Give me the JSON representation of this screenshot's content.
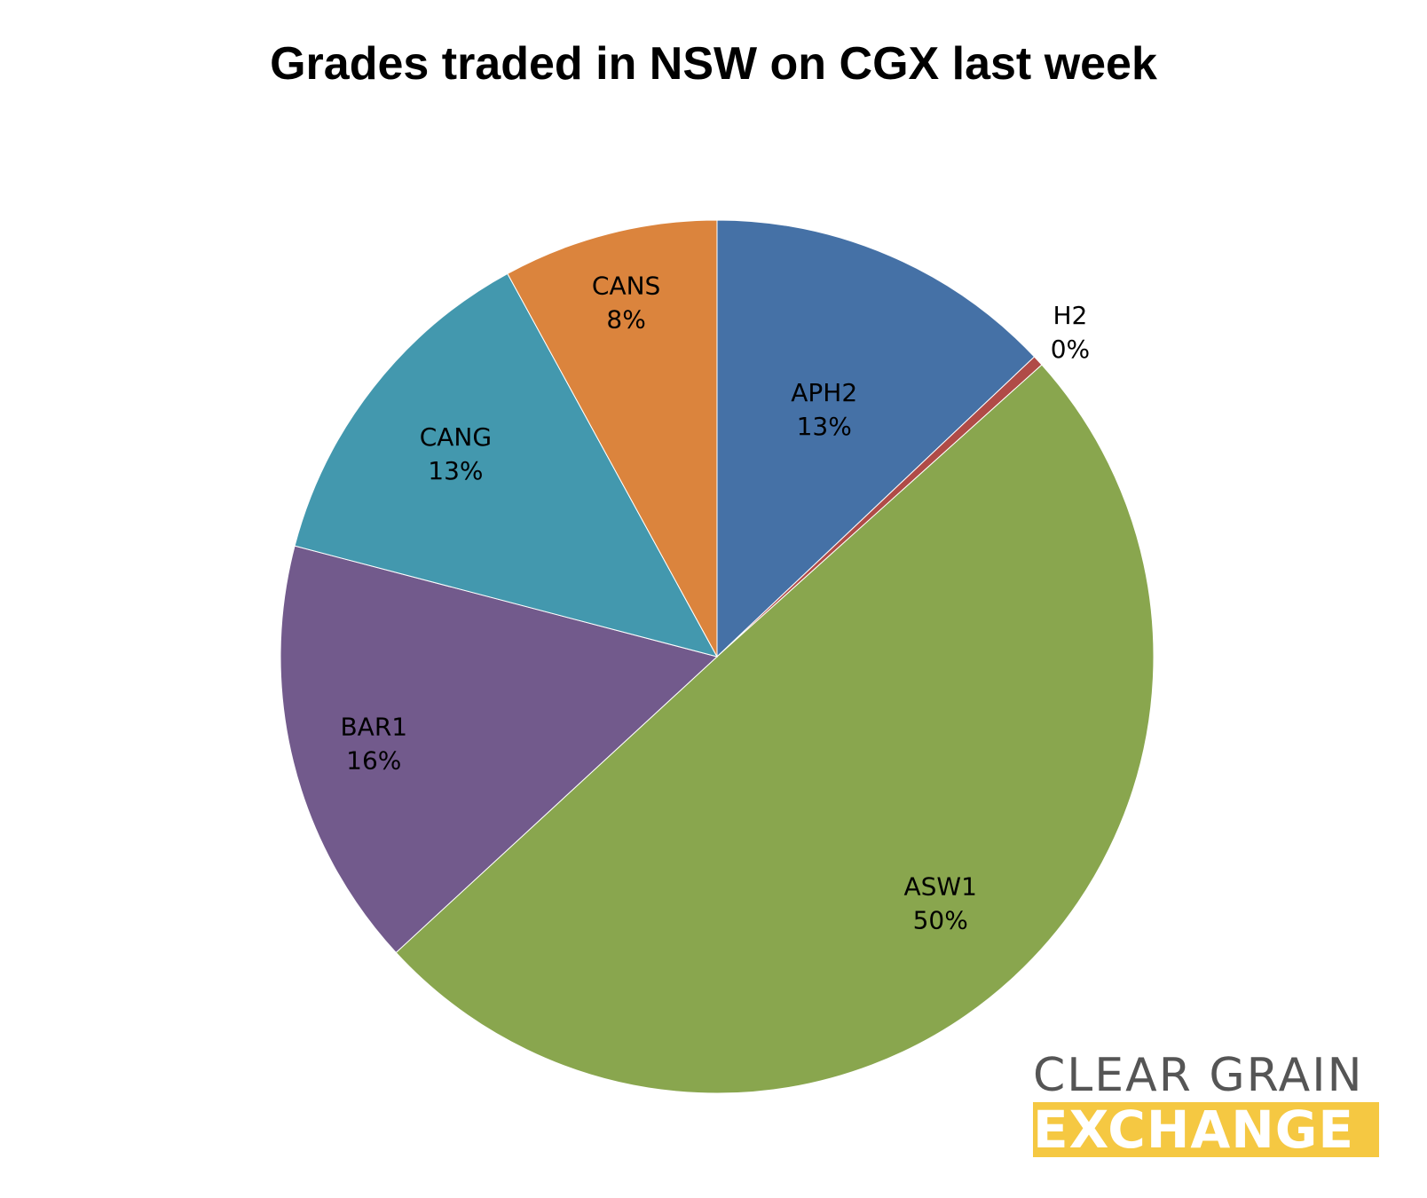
{
  "chart_data": {
    "type": "pie",
    "title": "Grades traded in NSW on CGX last week",
    "slices": [
      {
        "name": "APH2",
        "value": 13,
        "label": "13%",
        "color": "#4571a6"
      },
      {
        "name": "H2",
        "value": 0.4,
        "label": "0%",
        "color": "#b04b47"
      },
      {
        "name": "ASW1",
        "value": 50,
        "label": "50%",
        "color": "#89a64e"
      },
      {
        "name": "BAR1",
        "value": 16,
        "label": "16%",
        "color": "#725a8c"
      },
      {
        "name": "CANG",
        "value": 13,
        "label": "13%",
        "color": "#4398ae"
      },
      {
        "name": "CANS",
        "value": 8,
        "label": "8%",
        "color": "#db843d"
      }
    ],
    "start": "12 o'clock",
    "direction": "clockwise"
  },
  "logo": {
    "line1": "CLEAR GRAIN",
    "line2": "EXCHANGE",
    "text_color": "#555555",
    "band_color": "#f5c842"
  }
}
